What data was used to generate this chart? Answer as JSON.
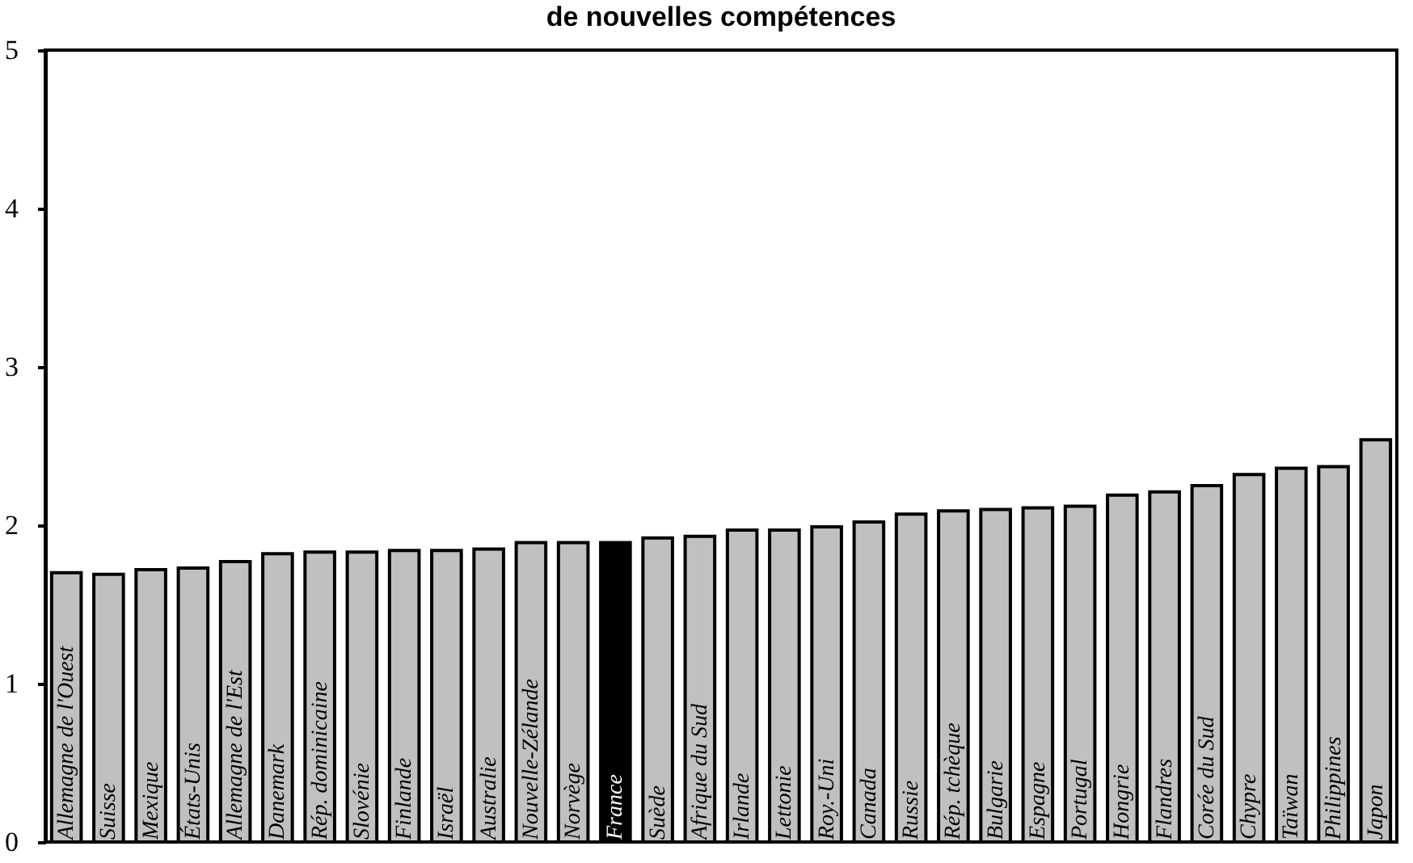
{
  "chart_data": {
    "type": "bar",
    "title": "de nouvelles compétences",
    "categories": [
      "Allemagne de l'Ouest",
      "Suisse",
      "Mexique",
      "États-Unis",
      "Allemagne de l'Est",
      "Danemark",
      "Rép. dominicaine",
      "Slovénie",
      "Finlande",
      "Israël",
      "Australie",
      "Nouvelle-Zélande",
      "Norvège",
      "France",
      "Suède",
      "Afrique du Sud",
      "Irlande",
      "Lettonie",
      "Roy.-Uni",
      "Canada",
      "Russie",
      "Rép. tchèque",
      "Bulgarie",
      "Espagne",
      "Portugal",
      "Hongrie",
      "Flandres",
      "Corée du Sud",
      "Chypre",
      "Taïwan",
      "Philippines",
      "Japon"
    ],
    "values": [
      1.7,
      1.69,
      1.72,
      1.73,
      1.77,
      1.82,
      1.83,
      1.83,
      1.84,
      1.84,
      1.85,
      1.89,
      1.89,
      1.89,
      1.92,
      1.93,
      1.97,
      1.97,
      1.99,
      2.02,
      2.07,
      2.09,
      2.1,
      2.11,
      2.12,
      2.19,
      2.21,
      2.25,
      2.32,
      2.36,
      2.37,
      2.54
    ],
    "colors": [
      "#c0c0c0",
      "#c0c0c0",
      "#c0c0c0",
      "#c0c0c0",
      "#c0c0c0",
      "#c0c0c0",
      "#c0c0c0",
      "#c0c0c0",
      "#c0c0c0",
      "#c0c0c0",
      "#c0c0c0",
      "#c0c0c0",
      "#c0c0c0",
      "#000000",
      "#c0c0c0",
      "#c0c0c0",
      "#c0c0c0",
      "#c0c0c0",
      "#c0c0c0",
      "#c0c0c0",
      "#c0c0c0",
      "#c0c0c0",
      "#c0c0c0",
      "#c0c0c0",
      "#c0c0c0",
      "#c0c0c0",
      "#c0c0c0",
      "#c0c0c0",
      "#c0c0c0",
      "#c0c0c0",
      "#c0c0c0",
      "#c0c0c0"
    ],
    "ylim": [
      0,
      5
    ],
    "yticks": [
      0,
      1,
      2,
      3,
      4,
      5
    ],
    "grid": false,
    "legend": false
  }
}
